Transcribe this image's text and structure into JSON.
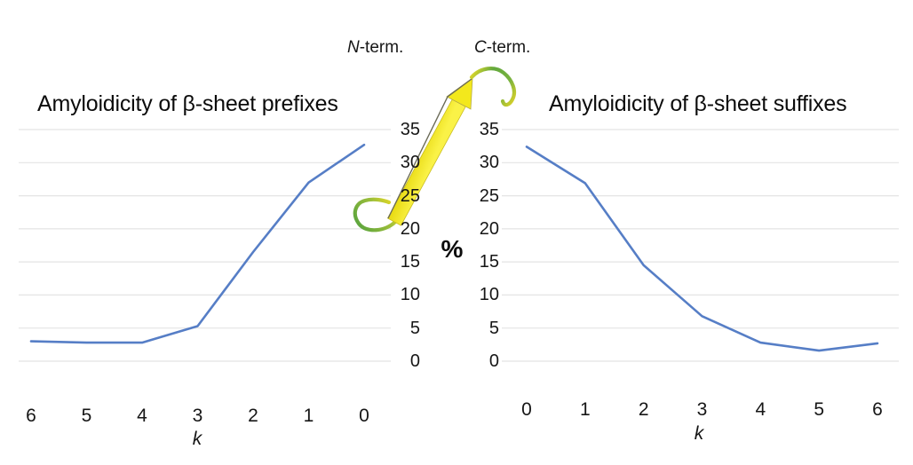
{
  "annotations": {
    "n_term": {
      "italic": "N",
      "rest": "-term."
    },
    "c_term": {
      "italic": "C",
      "rest": "-term."
    },
    "percent": "%"
  },
  "colors": {
    "series_line": "#567ec6",
    "gridline": "#e4e4e4",
    "text": "#111111",
    "strand_yellow": "#f3e81c",
    "coil_green": "#62a83d"
  },
  "chart_data": [
    {
      "type": "line",
      "title": "Amyloidicity of β-sheet prefixes",
      "xlabel": "k",
      "ylabel": "%",
      "categories": [
        "6",
        "5",
        "4",
        "3",
        "2",
        "1",
        "0"
      ],
      "values": [
        3.0,
        2.8,
        2.8,
        5.3,
        16.5,
        27.0,
        32.7
      ],
      "ylim": [
        0,
        35
      ],
      "y_ticks": [
        0,
        5,
        10,
        15,
        20,
        25,
        30,
        35
      ],
      "grid": true,
      "legend": "none",
      "note": "x axis runs 6 to 0 left-to-right toward the N-terminus",
      "line_color": "#567ec6"
    },
    {
      "type": "line",
      "title": "Amyloidicity of β-sheet suffixes",
      "xlabel": "k",
      "ylabel": "%",
      "categories": [
        "0",
        "1",
        "2",
        "3",
        "4",
        "5",
        "6"
      ],
      "values": [
        32.4,
        26.9,
        14.5,
        6.8,
        2.8,
        1.6,
        2.7
      ],
      "ylim": [
        0,
        35
      ],
      "y_ticks": [
        0,
        5,
        10,
        15,
        20,
        25,
        30,
        35
      ],
      "grid": true,
      "legend": "none",
      "note": "x axis runs 0 to 6 left-to-right from the C-terminus",
      "line_color": "#567ec6"
    }
  ]
}
